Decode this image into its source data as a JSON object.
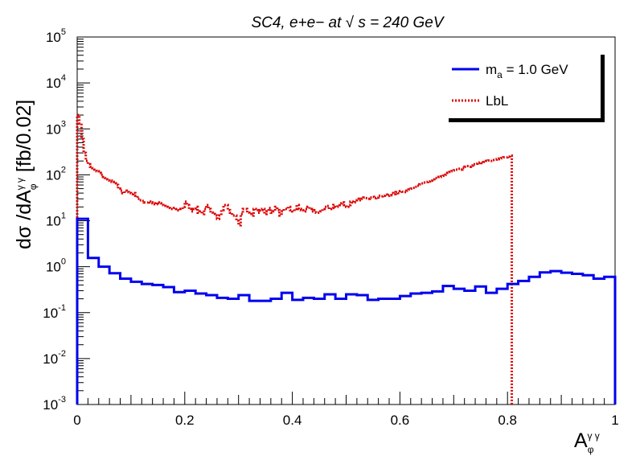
{
  "chart_data": {
    "type": "histogram-step",
    "title": "SC4, e+e− at √ s = 240 GeV",
    "xlabel": {
      "main": "A",
      "sub": "φ",
      "sup": "γ γ"
    },
    "ylabel": {
      "pre": "dσ /dA",
      "sub": "φ",
      "sup": "γ γ",
      "post": " [fb/0.02]"
    },
    "xlim": [
      0,
      1
    ],
    "ylim_log10": [
      -3,
      5
    ],
    "yscale": "log",
    "x_ticks": [
      {
        "value": 0,
        "label": "0"
      },
      {
        "value": 0.2,
        "label": "0.2"
      },
      {
        "value": 0.4,
        "label": "0.4"
      },
      {
        "value": 0.6,
        "label": "0.6"
      },
      {
        "value": 0.8,
        "label": "0.8"
      },
      {
        "value": 1,
        "label": "1"
      }
    ],
    "y_ticks": [
      {
        "exp": -3,
        "base": "10",
        "sup": "-3"
      },
      {
        "exp": -2,
        "base": "10",
        "sup": "-2"
      },
      {
        "exp": -1,
        "base": "10",
        "sup": "-1"
      },
      {
        "exp": 0,
        "base": "10",
        "sup": "0"
      },
      {
        "exp": 1,
        "base": "10",
        "sup": "1"
      },
      {
        "exp": 2,
        "base": "10",
        "sup": "2"
      },
      {
        "exp": 3,
        "base": "10",
        "sup": "3"
      },
      {
        "exp": 4,
        "base": "10",
        "sup": "4"
      },
      {
        "exp": 5,
        "base": "10",
        "sup": "5"
      }
    ],
    "legend": {
      "placement": "top-right",
      "entries": [
        {
          "label_main": "m",
          "label_sub": "a",
          "label_post": " = 1.0 GeV",
          "color": "#0000ee",
          "style": "solid"
        },
        {
          "label_main": "LbL",
          "label_sub": "",
          "label_post": "",
          "color": "#dd0000",
          "style": "dotted"
        }
      ]
    },
    "series": [
      {
        "name": "m_a = 1.0 GeV",
        "color": "#0000ee",
        "bin_width": 0.02,
        "bin_edges": [
          0,
          0.02,
          0.04,
          0.06,
          0.08,
          0.1,
          0.12,
          0.14,
          0.16,
          0.18,
          0.2,
          0.22,
          0.24,
          0.26,
          0.28,
          0.3,
          0.32,
          0.34,
          0.36,
          0.38,
          0.4,
          0.42,
          0.44,
          0.46,
          0.48,
          0.5,
          0.52,
          0.54,
          0.56,
          0.58,
          0.6,
          0.62,
          0.64,
          0.66,
          0.68,
          0.7,
          0.72,
          0.74,
          0.76,
          0.78,
          0.8,
          0.82,
          0.84,
          0.86,
          0.88,
          0.9,
          0.92,
          0.94,
          0.96,
          0.98,
          1.0
        ],
        "values": [
          11,
          1.55,
          1.0,
          0.72,
          0.55,
          0.47,
          0.42,
          0.4,
          0.36,
          0.28,
          0.3,
          0.26,
          0.24,
          0.21,
          0.2,
          0.24,
          0.18,
          0.18,
          0.2,
          0.27,
          0.19,
          0.21,
          0.2,
          0.25,
          0.2,
          0.25,
          0.24,
          0.19,
          0.2,
          0.2,
          0.23,
          0.26,
          0.27,
          0.29,
          0.38,
          0.33,
          0.3,
          0.37,
          0.27,
          0.33,
          0.42,
          0.49,
          0.6,
          0.75,
          0.8,
          0.74,
          0.7,
          0.65,
          0.55,
          0.6
        ]
      },
      {
        "name": "LbL",
        "color": "#dd0000",
        "bin_width": 0.004,
        "values": [
          2000,
          1300,
          600,
          300,
          200,
          170,
          150,
          140,
          130,
          120,
          110,
          100,
          90,
          85,
          80,
          75,
          70,
          65,
          60,
          50,
          45,
          40,
          45,
          42,
          40,
          38,
          40,
          35,
          30,
          28,
          27,
          25,
          25,
          26,
          25,
          24,
          23,
          25,
          24,
          22,
          21,
          20,
          19,
          18,
          18,
          19,
          18,
          17,
          18,
          20,
          26,
          22,
          18,
          16,
          18,
          20,
          15,
          16,
          14,
          18,
          22,
          18,
          15,
          14,
          13,
          11,
          13,
          17,
          22,
          22,
          17,
          15,
          13,
          13,
          10,
          8,
          14,
          18,
          18,
          15,
          14,
          13,
          18,
          17,
          15,
          17,
          18,
          14,
          16,
          19,
          15,
          16,
          20,
          17,
          13,
          16,
          18,
          18,
          20,
          17,
          16,
          18,
          22,
          18,
          17,
          16,
          18,
          20,
          18,
          16,
          17,
          15,
          15,
          16,
          18,
          20,
          21,
          18,
          19,
          22,
          20,
          22,
          24,
          25,
          22,
          20,
          22,
          26,
          25,
          28,
          30,
          28,
          30,
          32,
          31,
          30,
          32,
          33,
          31,
          32,
          35,
          34,
          35,
          37,
          35,
          36,
          40,
          38,
          42,
          40,
          44,
          43,
          42,
          45,
          48,
          50,
          52,
          55,
          58,
          62,
          65,
          68,
          70,
          72,
          75,
          80,
          85,
          85,
          90,
          92,
          95,
          100,
          110,
          115,
          120,
          125,
          130,
          135,
          130,
          140,
          150,
          155,
          150,
          160,
          170,
          175,
          180,
          185,
          180,
          190,
          200,
          205,
          200,
          210,
          215,
          220,
          225,
          230,
          240,
          240,
          250,
          260
        ]
      }
    ]
  }
}
